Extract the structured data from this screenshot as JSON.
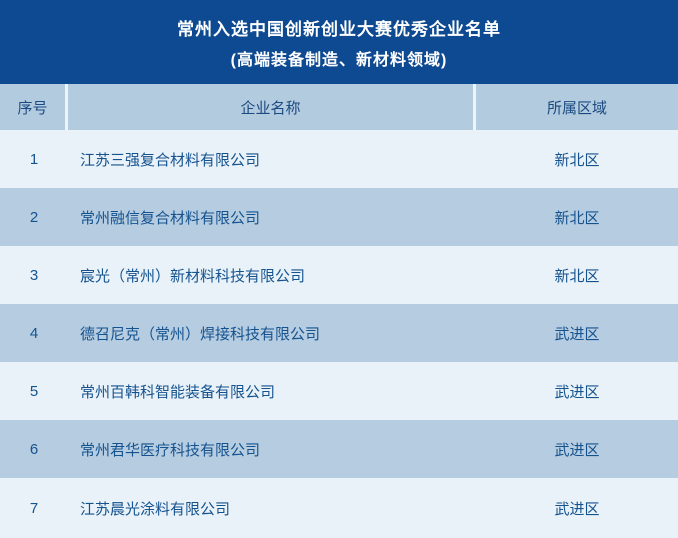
{
  "banner": {
    "title_line1": "常州入选中国创新创业大赛优秀企业名单",
    "title_line2": "(高端装备制造、新材料领域)"
  },
  "table": {
    "headers": {
      "seq": "序号",
      "name": "企业名称",
      "region": "所属区域"
    },
    "rows": [
      {
        "seq": "1",
        "name": "江苏三强复合材料有限公司",
        "region": "新北区"
      },
      {
        "seq": "2",
        "name": "常州融信复合材料有限公司",
        "region": "新北区"
      },
      {
        "seq": "3",
        "name": "宸光（常州）新材料科技有限公司",
        "region": "新北区"
      },
      {
        "seq": "4",
        "name": "德召尼克（常州）焊接科技有限公司",
        "region": "武进区"
      },
      {
        "seq": "5",
        "name": "常州百韩科智能装备有限公司",
        "region": "武进区"
      },
      {
        "seq": "6",
        "name": "常州君华医疗科技有限公司",
        "region": "武进区"
      },
      {
        "seq": "7",
        "name": "江苏晨光涂料有限公司",
        "region": "武进区"
      }
    ]
  },
  "colors": {
    "banner_bg": "#0e4a91",
    "header_bg": "#b3cbdf",
    "row_even_bg": "#b6cce0",
    "row_odd_bg": "#e9f2f9",
    "text_blue": "#15538f",
    "title_text": "#ffffff"
  }
}
